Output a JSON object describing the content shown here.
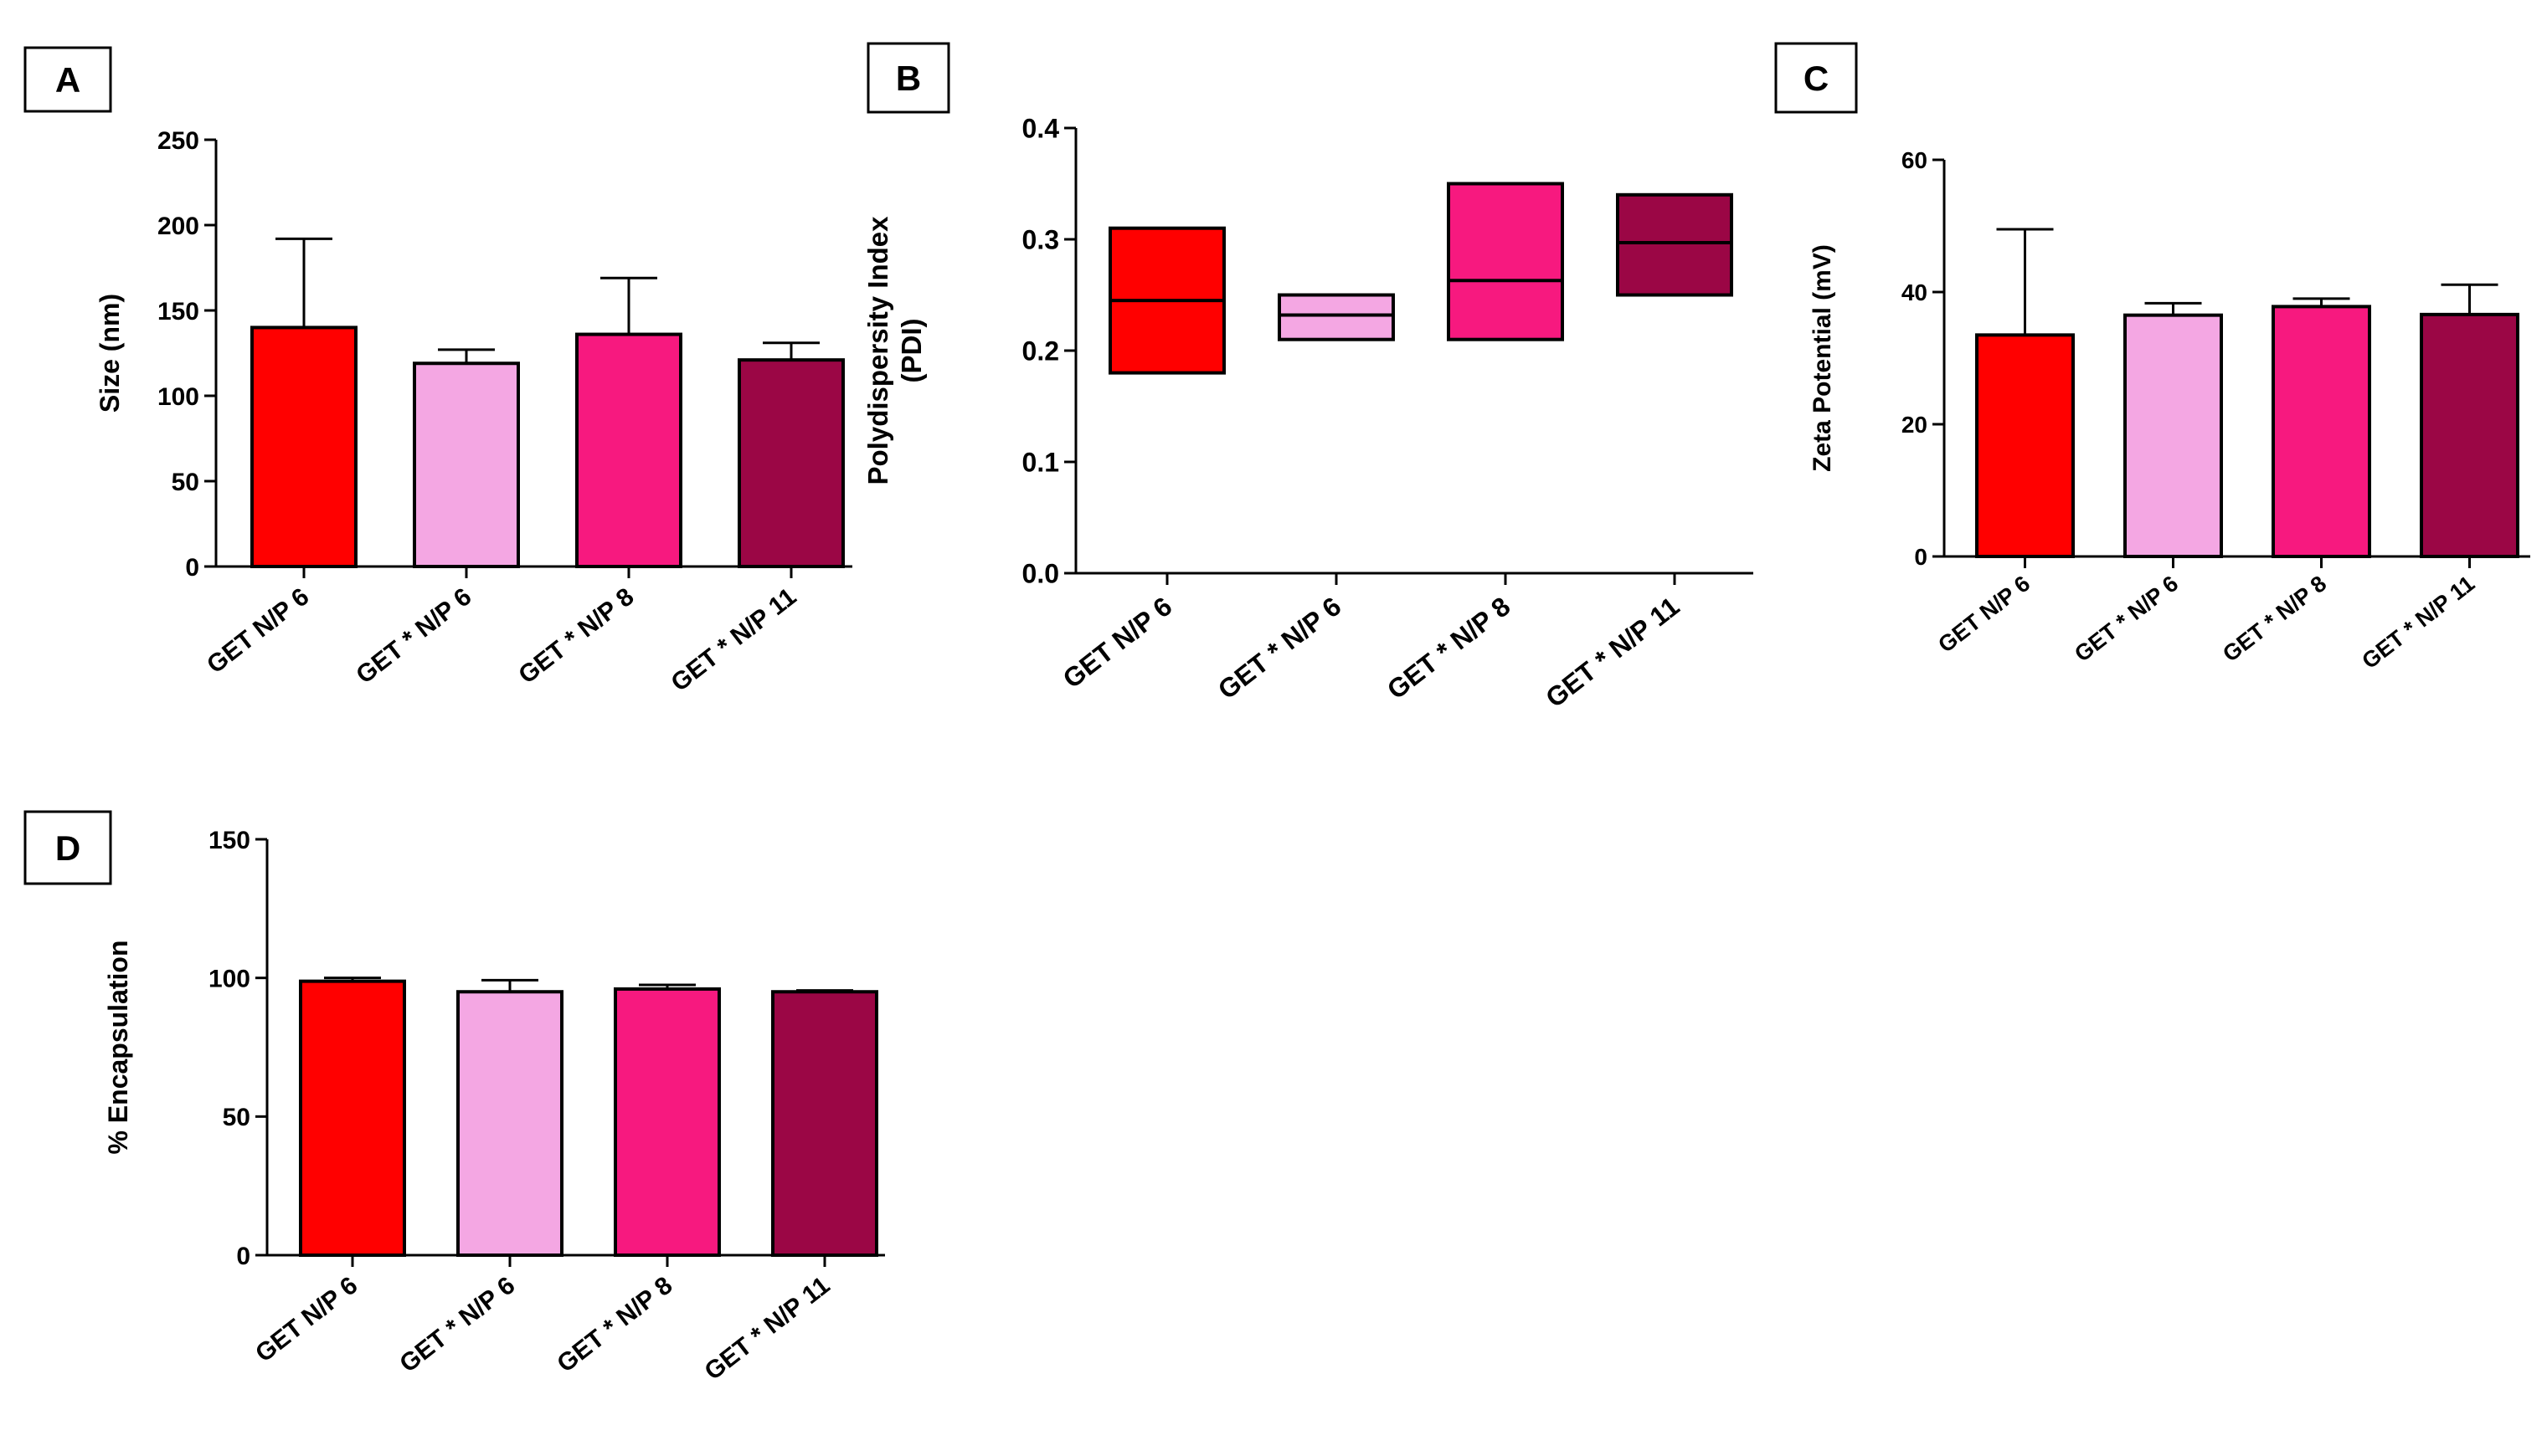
{
  "colors": {
    "red": "#ff0000",
    "light_pink": "#f4a7e3",
    "hot_pink": "#f7197f",
    "maroon": "#9b0645",
    "axis": "#000000"
  },
  "chart_data": [
    {
      "panel": "A",
      "type": "bar",
      "title": "",
      "ylabel": "Size (nm)",
      "categories": [
        "GET N/P 6",
        "GET * N/P 6",
        "GET * N/P 8",
        "GET * N/P 11"
      ],
      "values": [
        140,
        119,
        136,
        121
      ],
      "errors": [
        52,
        8,
        33,
        10
      ],
      "ylim": [
        0,
        250
      ],
      "yticks": [
        0,
        50,
        100,
        150,
        200,
        250
      ],
      "grid": false,
      "legend": "none"
    },
    {
      "panel": "B",
      "type": "box",
      "title": "",
      "ylabel": "Polydispersity Index (PDI)",
      "categories": [
        "GET N/P 6",
        "GET * N/P 6",
        "GET * N/P 8",
        "GET * N/P 11"
      ],
      "min": [
        0.18,
        0.21,
        0.21,
        0.25
      ],
      "median": [
        0.245,
        0.232,
        0.263,
        0.297
      ],
      "max": [
        0.31,
        0.25,
        0.35,
        0.34
      ],
      "ylim": [
        0,
        0.4
      ],
      "yticks": [
        0.0,
        0.1,
        0.2,
        0.3,
        0.4
      ],
      "grid": false,
      "legend": "none"
    },
    {
      "panel": "C",
      "type": "bar",
      "title": "",
      "ylabel": "Zeta Potential (mV)",
      "categories": [
        "GET N/P 6",
        "GET * N/P 6",
        "GET * N/P 8",
        "GET * N/P 11"
      ],
      "values": [
        33.5,
        36.5,
        37.8,
        36.6
      ],
      "errors": [
        16,
        1.8,
        1.2,
        4.5
      ],
      "ylim": [
        0,
        60
      ],
      "yticks": [
        0,
        20,
        40,
        60
      ],
      "grid": false,
      "legend": "none"
    },
    {
      "panel": "D",
      "type": "bar",
      "title": "",
      "ylabel": "% Encapsulation",
      "categories": [
        "GET N/P 6",
        "GET * N/P 6",
        "GET * N/P 8",
        "GET * N/P 11"
      ],
      "values": [
        98.8,
        95,
        96,
        95
      ],
      "errors": [
        1.2,
        4.2,
        1.5,
        0.5
      ],
      "ylim": [
        0,
        150
      ],
      "yticks": [
        0,
        50,
        100,
        150
      ],
      "grid": false,
      "legend": "none"
    }
  ]
}
